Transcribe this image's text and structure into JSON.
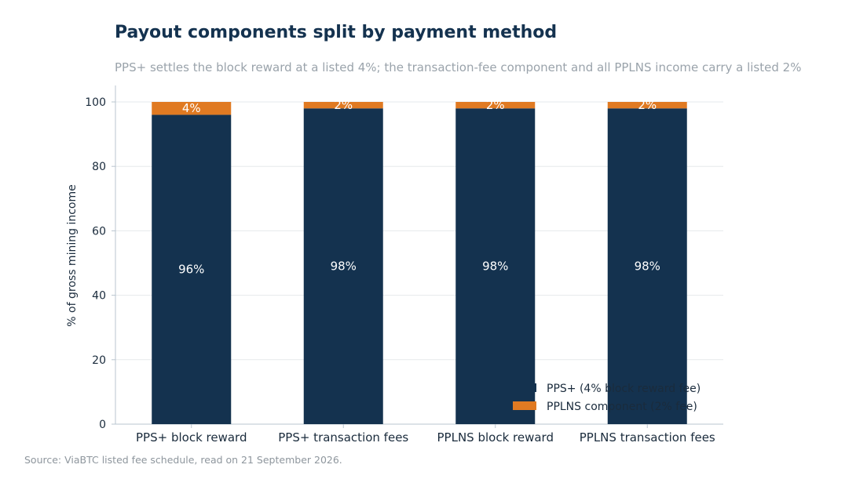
{
  "title": "Payout components split by payment method",
  "subtitle": "PPS+ settles the block reward at a listed 4%; the transaction-fee component and all PPLNS income carry a listed 2%",
  "source": "Source: ViaBTC listed fee schedule, read on 21 September 2026.",
  "colors": {
    "navy": "#14324f",
    "orange": "#e07a22",
    "grid": "#e6e9ec",
    "axis": "#b9c4cf",
    "tick_text": "#1a2b3c",
    "subtitle": "#9aa3ab",
    "source": "#8e969d"
  },
  "chart_data": {
    "type": "bar",
    "stacked": true,
    "categories": [
      "PPS+ block reward",
      "PPS+ transaction fees",
      "PPLNS block reward",
      "PPLNS transaction fees"
    ],
    "series": [
      {
        "values": [
          96,
          98,
          98,
          98
        ],
        "labels": [
          "96%",
          "98%",
          "98%",
          "98%"
        ],
        "color": "#14324f"
      },
      {
        "values": [
          4,
          2,
          2,
          2
        ],
        "labels": [
          "4%",
          "2%",
          "2%",
          "2%"
        ],
        "color": "#e07a22"
      }
    ],
    "ylabel": "% of gross mining income",
    "ylim": [
      0,
      100
    ],
    "yticks": [
      0,
      20,
      40,
      60,
      80,
      100
    ],
    "grid": true,
    "legend": {
      "placement": "bottom-right",
      "entries": [
        {
          "label": "PPS+ (4% block reward fee)",
          "color": "#14324f"
        },
        {
          "label": "PPLNS component (2% fee)",
          "color": "#e07a22"
        }
      ]
    }
  }
}
